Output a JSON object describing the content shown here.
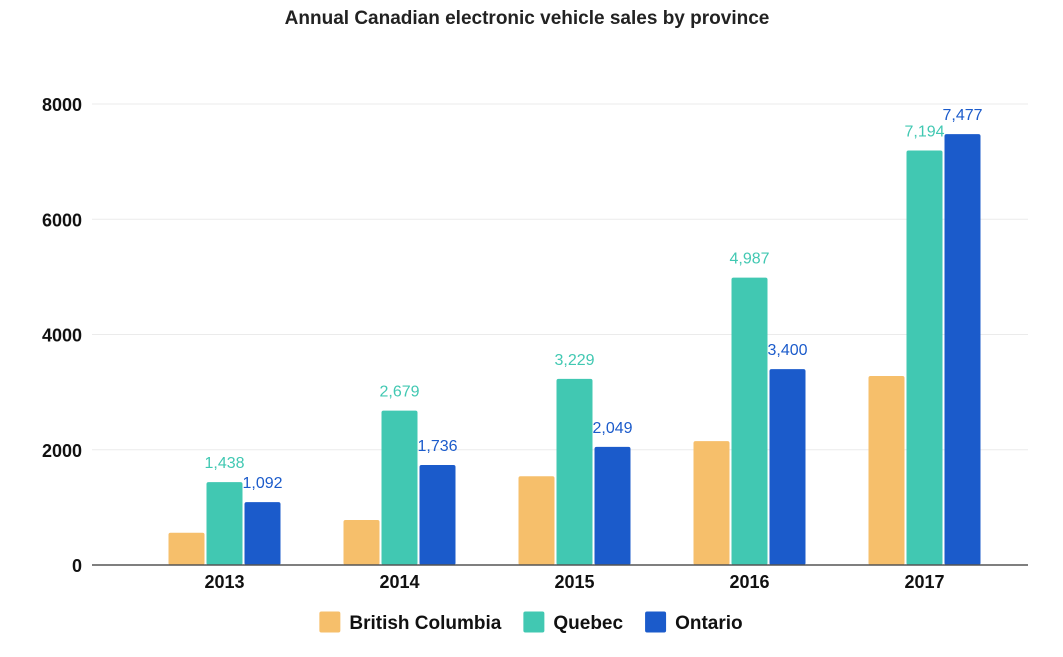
{
  "chart_data": {
    "type": "bar",
    "title": "Annual Canadian electronic vehicle sales by province",
    "xlabel": "",
    "ylabel": "",
    "categories": [
      "2013",
      "2014",
      "2015",
      "2016",
      "2017"
    ],
    "ylim": [
      0,
      8000
    ],
    "yticks": [
      "0",
      "2000",
      "4000",
      "6000",
      "8000"
    ],
    "grid": true,
    "legend_position": "bottom",
    "series": [
      {
        "name": "British Columbia",
        "color": "#F6BF6B",
        "values": [
          560,
          780,
          1540,
          2150,
          3280
        ],
        "labels": [
          "",
          "",
          "",
          "",
          ""
        ],
        "label_color": ""
      },
      {
        "name": "Quebec",
        "color": "#41C8B2",
        "values": [
          1438,
          2679,
          3229,
          4987,
          7194
        ],
        "labels": [
          "1,438",
          "2,679",
          "3,229",
          "4,987",
          "7,194"
        ],
        "label_color": "#41C8B2"
      },
      {
        "name": "Ontario",
        "color": "#1B5BCB",
        "values": [
          1092,
          1736,
          2049,
          3400,
          7477
        ],
        "labels": [
          "1,092",
          "1,736",
          "2,049",
          "3,400",
          "7,477"
        ],
        "label_color": "#1B5BCB"
      }
    ]
  }
}
